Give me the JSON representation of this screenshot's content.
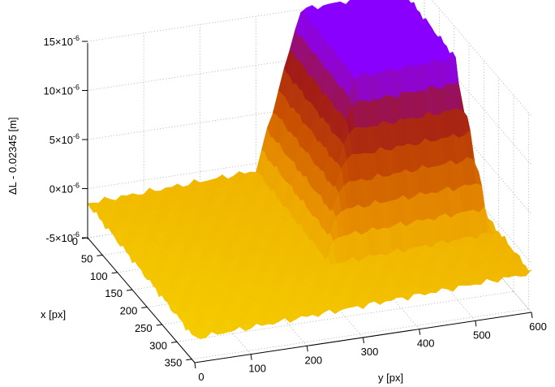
{
  "chart_data": {
    "type": "surface3d",
    "title": "",
    "xlabel": "x [px]",
    "ylabel": "y [px]",
    "zlabel": "ΔL - 0.02345 [m]",
    "x_ticks": [
      0,
      50,
      100,
      150,
      200,
      250,
      300,
      350
    ],
    "y_ticks": [
      0,
      100,
      200,
      300,
      400,
      500,
      600
    ],
    "z_tick_values": [
      -5e-06,
      0,
      5e-06,
      1e-05,
      1.5e-05
    ],
    "z_tick_labels": [
      {
        "mantissa": "-5×10",
        "exp": "-6"
      },
      {
        "mantissa": "0×10",
        "exp": "-6"
      },
      {
        "mantissa": "5×10",
        "exp": "-6"
      },
      {
        "mantissa": "10×10",
        "exp": "-6"
      },
      {
        "mantissa": "15×10",
        "exp": "-6"
      }
    ],
    "xlim": [
      0,
      360
    ],
    "ylim": [
      0,
      600
    ],
    "zlim": [
      -5e-06,
      1.5e-05
    ],
    "grid": true,
    "colormap": [
      "#f5cc00",
      "#e89000",
      "#c85000",
      "#a01818",
      "#8a00ff"
    ],
    "surface_shape": {
      "baseline_level": -1.5e-06,
      "plateau_level": 1.4e-05,
      "plateau_y_range": [
        380,
        560
      ],
      "plateau_x_range": [
        0,
        180
      ]
    }
  }
}
